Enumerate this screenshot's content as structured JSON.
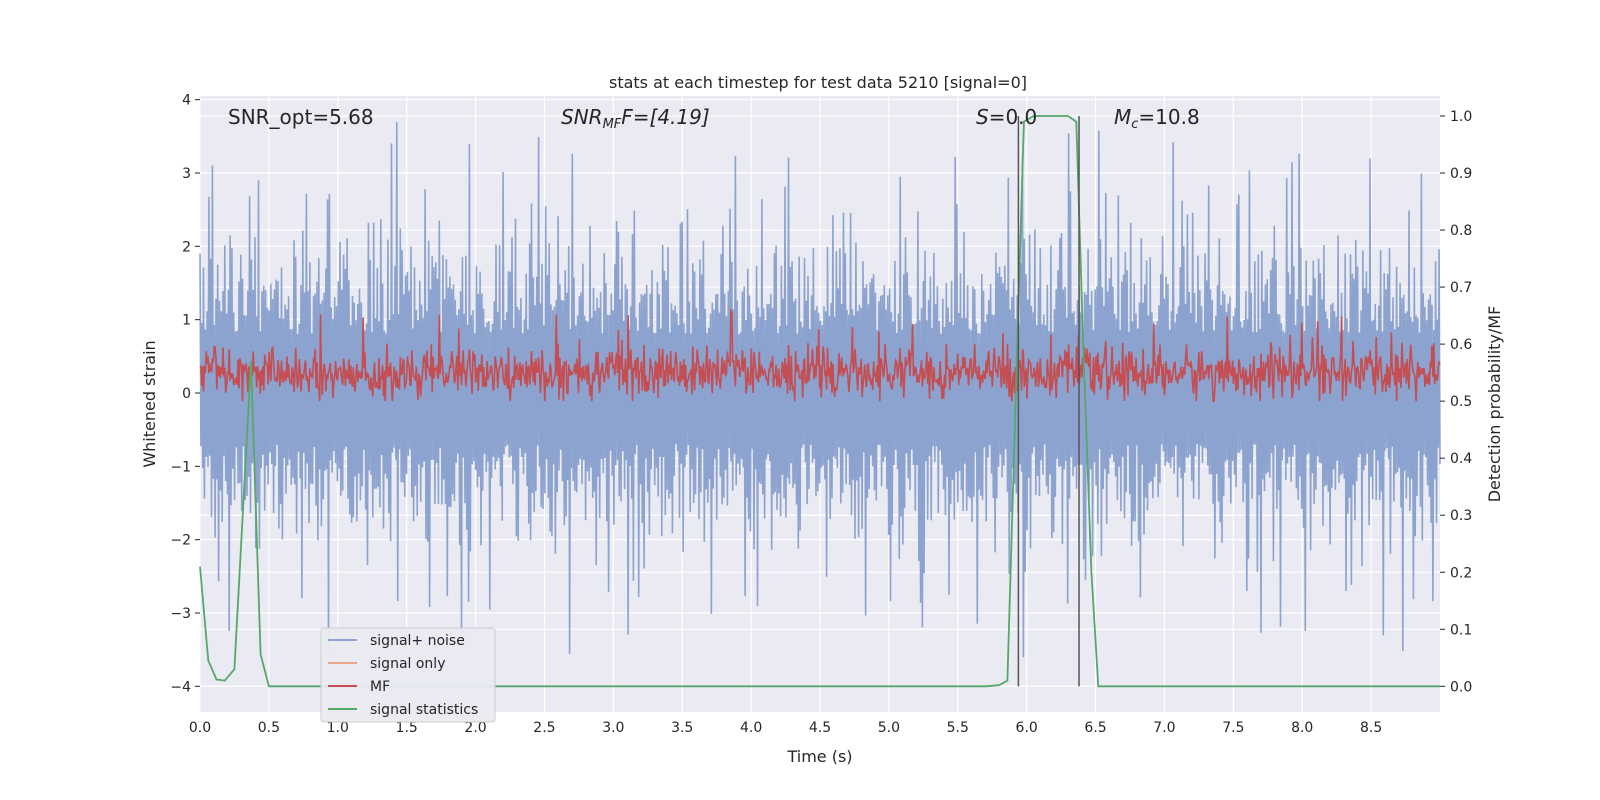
{
  "chart_data": {
    "type": "line",
    "title": "stats at each timestep for test data 5210 [signal=0]",
    "xlabel": "Time (s)",
    "ylabel": "Whitened strain",
    "y2label": "Detection probability/MF",
    "xlim": [
      0.0,
      9.0
    ],
    "ylim": [
      -4.35,
      4.05
    ],
    "y2lim": [
      -0.045,
      1.035
    ],
    "xticks": [
      "0.0",
      "0.5",
      "1.0",
      "1.5",
      "2.0",
      "2.5",
      "3.0",
      "3.5",
      "4.0",
      "4.5",
      "5.0",
      "5.5",
      "6.0",
      "6.5",
      "7.0",
      "7.5",
      "8.0",
      "8.5"
    ],
    "yticks": [
      "4",
      "3",
      "2",
      "1",
      "0",
      "−1",
      "−2",
      "−3",
      "−4"
    ],
    "y2ticks": [
      "1.0",
      "0.9",
      "0.8",
      "0.7",
      "0.6",
      "0.5",
      "0.4",
      "0.3",
      "0.2",
      "0.1",
      "0.0"
    ],
    "grid": true,
    "legend_position": "lower-left",
    "annotations": {
      "snr_opt": "SNR_opt=5.68",
      "snr_mf_base": "SNR",
      "snr_mf_sub": "MF",
      "snr_mf_tail": "F=[4.19]",
      "s_base": "S",
      "s_tail": "=0.0",
      "mc_base": "M",
      "mc_sub": "c",
      "mc_tail": "=10.8"
    },
    "vertical_lines_x": [
      5.94,
      6.38
    ],
    "series": [
      {
        "name": "signal+ noise",
        "color": "#8da3cf",
        "axis": "left",
        "description_envelope": {
          "upper_typical": 2.0,
          "upper_peak": 3.7,
          "lower_typical": -1.8,
          "lower_peak": -3.9
        },
        "samples": 1400
      },
      {
        "name": "signal only",
        "color": "#e8a98b",
        "axis": "left",
        "values_constant": 0.0
      },
      {
        "name": "MF",
        "color": "#c44e52",
        "axis": "right",
        "baseline": 0.55,
        "range": [
          0.5,
          0.66
        ],
        "samples": 1400
      },
      {
        "name": "signal statistics",
        "color": "#55a868",
        "axis": "right",
        "x": [
          0.0,
          0.06,
          0.12,
          0.18,
          0.25,
          0.37,
          0.44,
          0.5,
          0.56,
          1.0,
          2.0,
          3.0,
          4.0,
          5.0,
          5.7,
          5.8,
          5.86,
          5.92,
          5.98,
          6.05,
          6.2,
          6.3,
          6.36,
          6.41,
          6.47,
          6.52,
          6.6,
          7.0,
          8.0,
          9.0
        ],
        "y": [
          0.21,
          0.045,
          0.012,
          0.01,
          0.03,
          0.57,
          0.056,
          0.0,
          0.0,
          0.0,
          0.0,
          0.0,
          0.0,
          0.0,
          0.0,
          0.002,
          0.01,
          0.5,
          0.99,
          1.0,
          1.0,
          1.0,
          0.99,
          0.6,
          0.2,
          0.0,
          0.0,
          0.0,
          0.0,
          0.0
        ]
      }
    ]
  }
}
